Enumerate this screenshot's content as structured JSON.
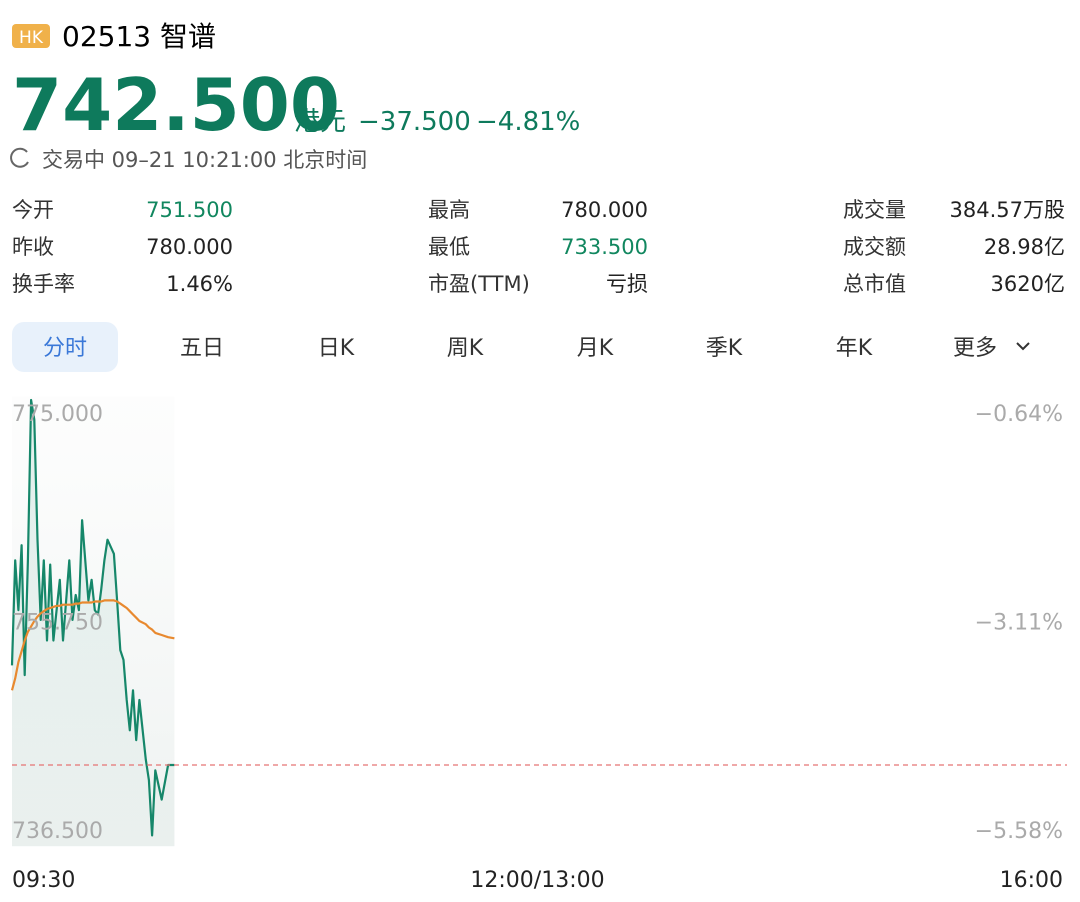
{
  "header": {
    "market": "HK",
    "code": "02513",
    "name": "智谱",
    "price": "742.500",
    "currency": "港元",
    "change": "−37.500",
    "change_pct": "−4.81%",
    "status": "交易中 09–21 10:21:00 北京时间"
  },
  "stats": [
    [
      {
        "label": "今开",
        "value": "751.500",
        "color": "#11875f"
      },
      {
        "label": "最高",
        "value": "780.000"
      },
      {
        "label": "成交量",
        "value": "384.57万股"
      }
    ],
    [
      {
        "label": "昨收",
        "value": "780.000"
      },
      {
        "label": "最低",
        "value": "733.500",
        "color": "#11875f"
      },
      {
        "label": "成交额",
        "value": "28.98亿"
      }
    ],
    [
      {
        "label": "换手率",
        "value": "1.46%"
      },
      {
        "label": "市盈(TTM)",
        "value": "亏损"
      },
      {
        "label": "总市值",
        "value": "3620亿"
      }
    ]
  ],
  "tabs": {
    "items": [
      "分时",
      "五日",
      "日K",
      "周K",
      "月K",
      "季K",
      "年K",
      "更多"
    ],
    "active": 0
  },
  "chart_data": {
    "type": "line",
    "x": [
      0,
      1,
      2,
      3,
      4,
      5,
      6,
      7,
      8,
      9,
      10,
      11,
      12,
      13,
      14,
      15,
      16,
      18,
      19,
      20,
      21,
      22,
      24,
      25,
      26,
      27,
      28,
      29,
      30,
      32,
      33,
      34,
      35,
      36,
      37,
      38,
      39,
      40,
      42,
      43,
      44,
      45,
      47,
      49,
      51
    ],
    "series": [
      {
        "color": "#16876a",
        "values": [
          751.7,
          761.4,
          756.8,
          762.8,
          750.8,
          761.4,
          776.2,
          774.4,
          763.3,
          755.9,
          761.4,
          754,
          761,
          754,
          756.8,
          759.6,
          754,
          761.4,
          755.9,
          758.2,
          756.8,
          765.1,
          757.7,
          759.6,
          756.8,
          756.4,
          758.7,
          761.4,
          763.3,
          762,
          757.7,
          753.1,
          752.2,
          748.5,
          745.7,
          749.4,
          744.8,
          748.5,
          743,
          741.1,
          736,
          742,
          739.3,
          742.5,
          742.5
        ]
      },
      {
        "color": "#e8892f",
        "values": [
          749.4,
          750.5,
          752,
          753,
          754,
          754.8,
          755.3,
          755.8,
          756.2,
          756.5,
          756.7,
          756.9,
          757,
          757.1,
          757.2,
          757.2,
          757.3,
          757.3,
          757.3,
          757.4,
          757.4,
          757.5,
          757.5,
          757.5,
          757.6,
          757.6,
          757.6,
          757.7,
          757.7,
          757.7,
          757.6,
          757.4,
          757.2,
          757,
          756.7,
          756.4,
          756.1,
          755.8,
          755.5,
          755.2,
          755,
          754.7,
          754.5,
          754.3,
          754.2
        ]
      }
    ],
    "xlim": [
      0,
      330
    ],
    "xticks": [
      {
        "value": 0,
        "label": "09:30"
      },
      {
        "value": 165,
        "label": "12:00/13:00"
      },
      {
        "value": 330,
        "label": "16:00"
      }
    ],
    "ylim": [
      735,
      776.5
    ],
    "yticks": [
      {
        "value": 775,
        "label": "775.000"
      },
      {
        "value": 755.75,
        "label": "755.750"
      },
      {
        "value": 736.5,
        "label": "736.500"
      }
    ],
    "y2lim": [
      -5.77,
      -0.45
    ],
    "y2ticks": [
      {
        "value": -0.64,
        "label": "−0.64%"
      },
      {
        "value": -3.11,
        "label": "−3.11%"
      },
      {
        "value": -5.58,
        "label": "−5.58%"
      }
    ],
    "reference_line": 742.5,
    "reference_color": "#e57373"
  }
}
